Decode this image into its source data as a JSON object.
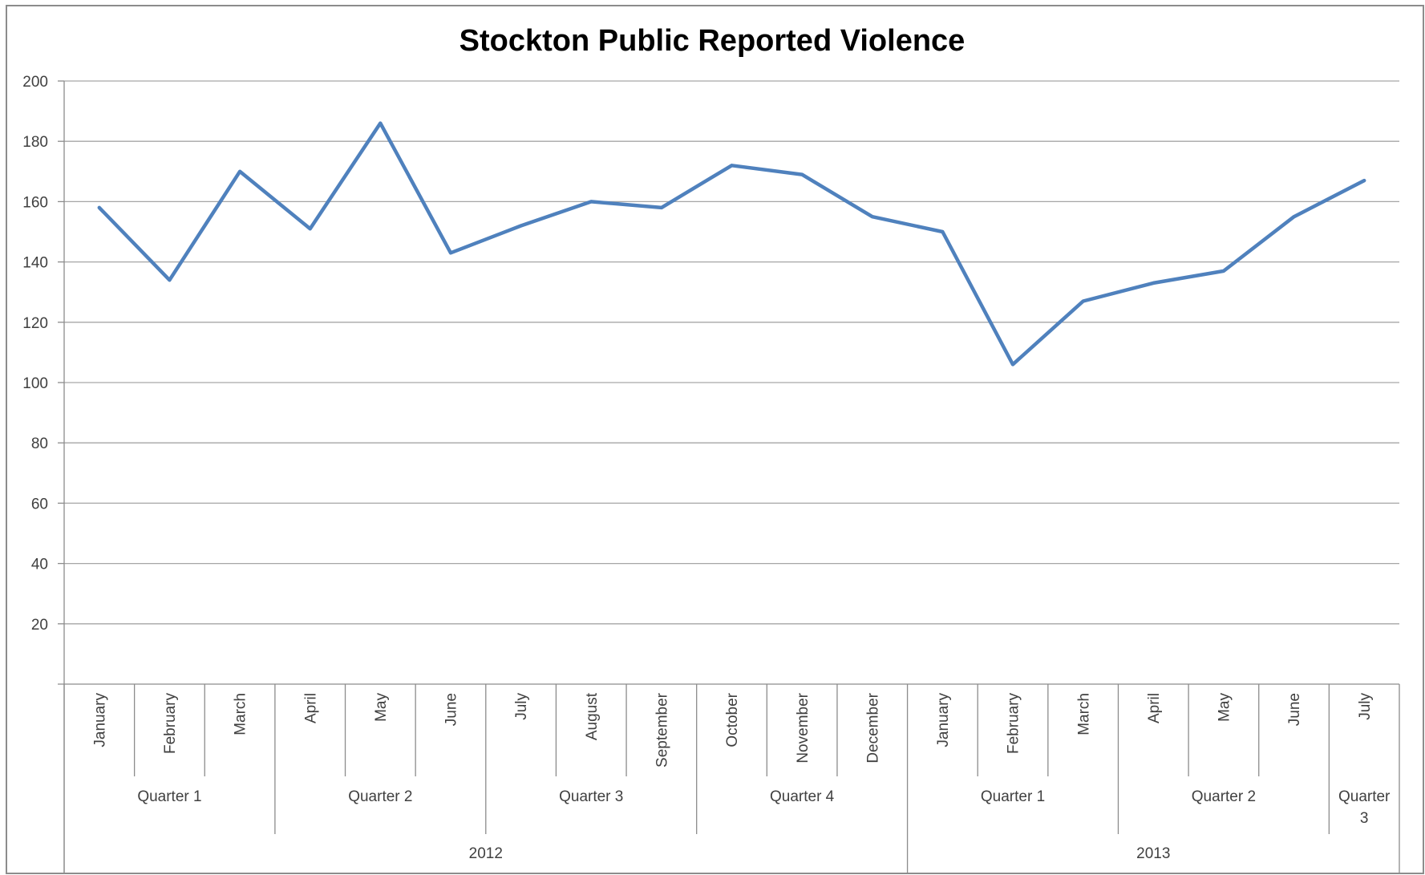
{
  "chart_data": {
    "type": "line",
    "title": "Stockton Public Reported Violence",
    "xlabel": "",
    "ylabel": "",
    "ylim": [
      0,
      200
    ],
    "yticks": [
      20,
      40,
      60,
      80,
      100,
      120,
      140,
      160,
      180,
      200
    ],
    "grid": true,
    "legend": "none",
    "categories": [
      "January",
      "February",
      "March",
      "April",
      "May",
      "June",
      "July",
      "August",
      "September",
      "October",
      "November",
      "December",
      "January",
      "February",
      "March",
      "April",
      "May",
      "June",
      "July"
    ],
    "quarters": [
      {
        "label": "Quarter 1",
        "count": 3
      },
      {
        "label": "Quarter 2",
        "count": 3
      },
      {
        "label": "Quarter 3",
        "count": 3
      },
      {
        "label": "Quarter 4",
        "count": 3
      },
      {
        "label": "Quarter 1",
        "count": 3
      },
      {
        "label": "Quarter 2",
        "count": 3
      },
      {
        "label": "Quarter 3",
        "count": 1
      }
    ],
    "years": [
      {
        "label": "2012",
        "count": 12
      },
      {
        "label": "2013",
        "count": 7
      }
    ],
    "series": [
      {
        "values": [
          158,
          134,
          170,
          151,
          186,
          143,
          152,
          160,
          158,
          172,
          169,
          155,
          150,
          106,
          127,
          133,
          137,
          155,
          167
        ]
      }
    ],
    "colors": {
      "line": "#4f81bd",
      "grid": "#a6a6a6",
      "axis": "#8c8c8c",
      "text": "#404040"
    }
  }
}
